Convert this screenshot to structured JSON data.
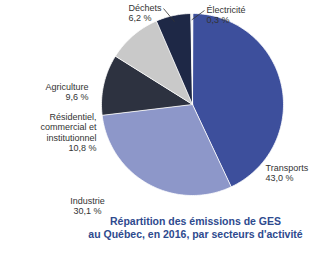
{
  "chart_data": {
    "type": "pie",
    "title": "Répartition des émissions de GES\nau Québec, en 2016, par secteurs d'activité",
    "categories": [
      "Transports",
      "Industrie",
      "Résidentiel, commercial et institutionnel",
      "Agriculture",
      "Déchets",
      "Électricité"
    ],
    "values": [
      43.0,
      30.1,
      10.8,
      9.6,
      6.2,
      0.3
    ],
    "value_labels": [
      "43,0 %",
      "30,1 %",
      "10,8 %",
      "9,6 %",
      "6,2 %",
      "0,3 %"
    ],
    "colors": [
      "#3d4f9c",
      "#8d97c9",
      "#2d3240",
      "#c9c9c9",
      "#1e2846",
      "#f4f4f4"
    ],
    "data_labels": true
  }
}
